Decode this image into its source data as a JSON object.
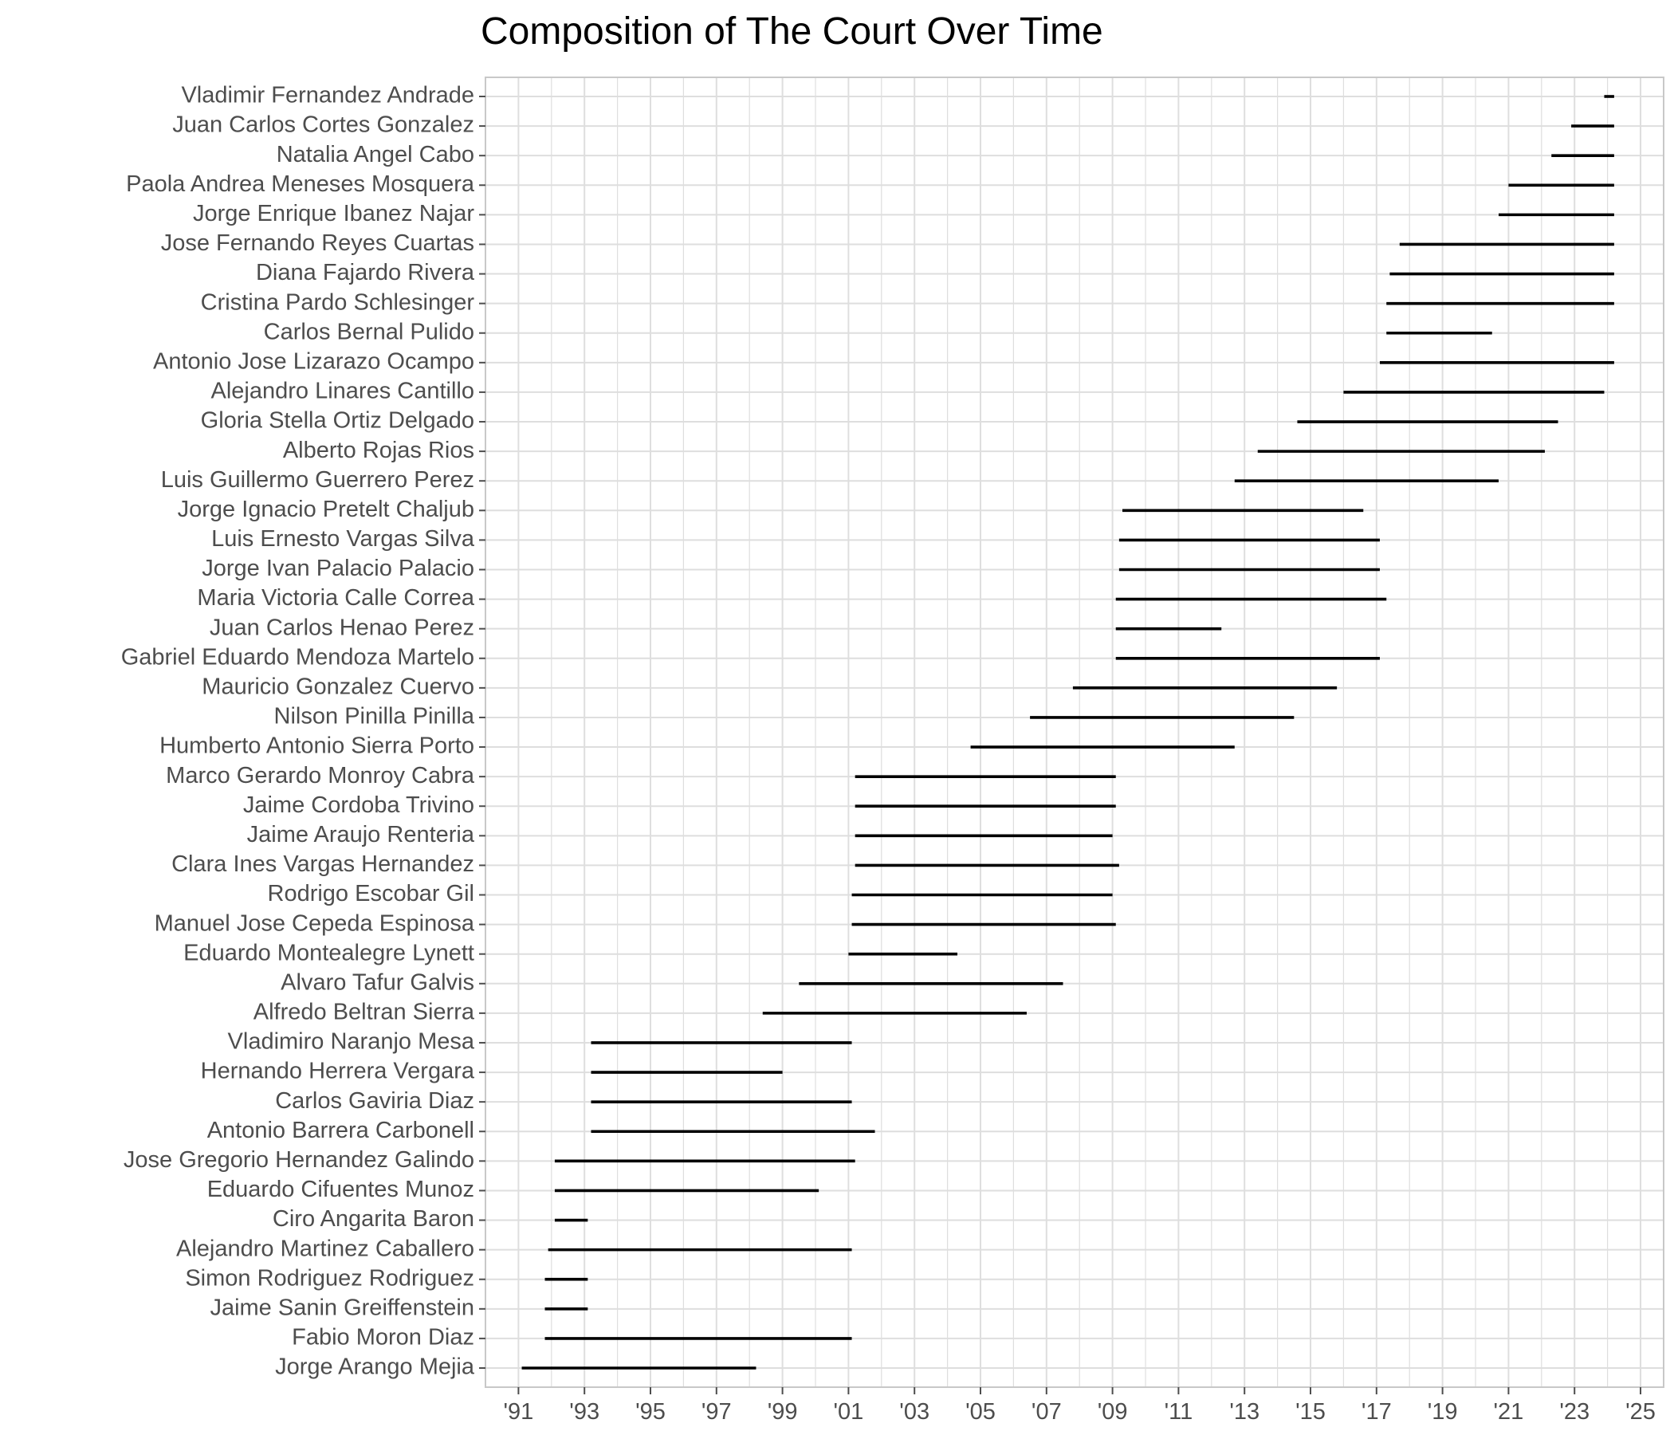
{
  "chart_data": {
    "type": "range-bar",
    "title": "Composition of The Court Over Time",
    "xlabel": "",
    "ylabel": "",
    "xlim": [
      1990.0,
      2025.7
    ],
    "x_ticks": [
      1991,
      1993,
      1995,
      1997,
      1999,
      2001,
      2003,
      2005,
      2007,
      2009,
      2011,
      2013,
      2015,
      2017,
      2019,
      2021,
      2023,
      2025
    ],
    "x_tick_labels": [
      "'91",
      "'93",
      "'95",
      "'97",
      "'99",
      "'01",
      "'03",
      "'05",
      "'07",
      "'09",
      "'11",
      "'13",
      "'15",
      "'17",
      "'19",
      "'21",
      "'23",
      "'25"
    ],
    "grid": true,
    "colors": {
      "segment": "#000000",
      "grid": "#dedede",
      "panel_border": "#c8c8c8",
      "axis_text": "#4d4d4d"
    },
    "series": [
      {
        "name": "Jorge Arango Mejia",
        "start": 1991.1,
        "end": 1998.2
      },
      {
        "name": "Fabio Moron Diaz",
        "start": 1991.8,
        "end": 2001.1
      },
      {
        "name": "Jaime Sanin Greiffenstein",
        "start": 1991.8,
        "end": 1993.1
      },
      {
        "name": "Simon Rodriguez Rodriguez",
        "start": 1991.8,
        "end": 1993.1
      },
      {
        "name": "Alejandro Martinez Caballero",
        "start": 1991.9,
        "end": 2001.1
      },
      {
        "name": "Ciro Angarita Baron",
        "start": 1992.1,
        "end": 1993.1
      },
      {
        "name": "Eduardo Cifuentes Munoz",
        "start": 1992.1,
        "end": 2000.1
      },
      {
        "name": "Jose Gregorio Hernandez Galindo",
        "start": 1992.1,
        "end": 2001.2
      },
      {
        "name": "Antonio Barrera Carbonell",
        "start": 1993.2,
        "end": 2001.8
      },
      {
        "name": "Carlos Gaviria Diaz",
        "start": 1993.2,
        "end": 2001.1
      },
      {
        "name": "Hernando Herrera Vergara",
        "start": 1993.2,
        "end": 1999.0
      },
      {
        "name": "Vladimiro Naranjo Mesa",
        "start": 1993.2,
        "end": 2001.1
      },
      {
        "name": "Alfredo Beltran Sierra",
        "start": 1998.4,
        "end": 2006.4
      },
      {
        "name": "Alvaro Tafur Galvis",
        "start": 1999.5,
        "end": 2007.5
      },
      {
        "name": "Eduardo Montealegre Lynett",
        "start": 2001.0,
        "end": 2004.3
      },
      {
        "name": "Manuel Jose Cepeda Espinosa",
        "start": 2001.1,
        "end": 2009.1
      },
      {
        "name": "Rodrigo Escobar Gil",
        "start": 2001.1,
        "end": 2009.0
      },
      {
        "name": "Clara Ines Vargas Hernandez",
        "start": 2001.2,
        "end": 2009.2
      },
      {
        "name": "Jaime Araujo Renteria",
        "start": 2001.2,
        "end": 2009.0
      },
      {
        "name": "Jaime Cordoba Trivino",
        "start": 2001.2,
        "end": 2009.1
      },
      {
        "name": "Marco Gerardo Monroy Cabra",
        "start": 2001.2,
        "end": 2009.1
      },
      {
        "name": "Humberto Antonio Sierra Porto",
        "start": 2004.7,
        "end": 2012.7
      },
      {
        "name": "Nilson Pinilla Pinilla",
        "start": 2006.5,
        "end": 2014.5
      },
      {
        "name": "Mauricio Gonzalez Cuervo",
        "start": 2007.8,
        "end": 2015.8
      },
      {
        "name": "Gabriel Eduardo Mendoza Martelo",
        "start": 2009.1,
        "end": 2017.1
      },
      {
        "name": "Juan Carlos Henao Perez",
        "start": 2009.1,
        "end": 2012.3
      },
      {
        "name": "Maria Victoria Calle Correa",
        "start": 2009.1,
        "end": 2017.3
      },
      {
        "name": "Jorge Ivan Palacio Palacio",
        "start": 2009.2,
        "end": 2017.1
      },
      {
        "name": "Luis Ernesto Vargas Silva",
        "start": 2009.2,
        "end": 2017.1
      },
      {
        "name": "Jorge Ignacio Pretelt Chaljub",
        "start": 2009.3,
        "end": 2016.6
      },
      {
        "name": "Luis Guillermo Guerrero Perez",
        "start": 2012.7,
        "end": 2020.7
      },
      {
        "name": "Alberto Rojas Rios",
        "start": 2013.4,
        "end": 2022.1
      },
      {
        "name": "Gloria Stella Ortiz Delgado",
        "start": 2014.6,
        "end": 2022.5
      },
      {
        "name": "Alejandro Linares Cantillo",
        "start": 2016.0,
        "end": 2023.9
      },
      {
        "name": "Antonio Jose Lizarazo Ocampo",
        "start": 2017.1,
        "end": 2024.2
      },
      {
        "name": "Carlos Bernal Pulido",
        "start": 2017.3,
        "end": 2020.5
      },
      {
        "name": "Cristina Pardo Schlesinger",
        "start": 2017.3,
        "end": 2024.2
      },
      {
        "name": "Diana Fajardo Rivera",
        "start": 2017.4,
        "end": 2024.2
      },
      {
        "name": "Jose Fernando Reyes Cuartas",
        "start": 2017.7,
        "end": 2024.2
      },
      {
        "name": "Jorge Enrique Ibanez Najar",
        "start": 2020.7,
        "end": 2024.2
      },
      {
        "name": "Paola Andrea Meneses Mosquera",
        "start": 2021.0,
        "end": 2024.2
      },
      {
        "name": "Natalia Angel Cabo",
        "start": 2022.3,
        "end": 2024.2
      },
      {
        "name": "Juan Carlos Cortes Gonzalez",
        "start": 2022.9,
        "end": 2024.2
      },
      {
        "name": "Vladimir Fernandez Andrade",
        "start": 2023.9,
        "end": 2024.2
      }
    ]
  }
}
